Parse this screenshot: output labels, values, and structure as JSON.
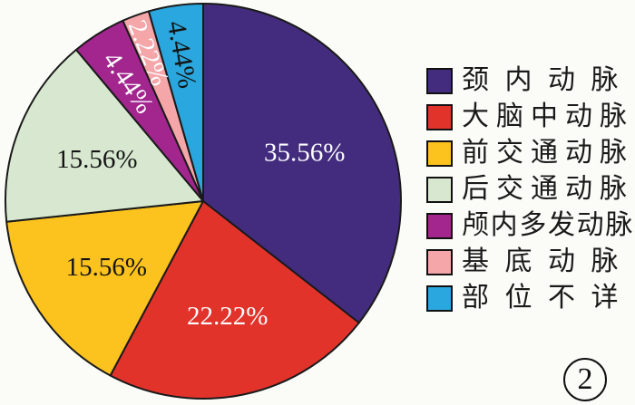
{
  "figure_number": "2",
  "colors": {
    "background": "#fbfbf8",
    "outline": "#1a1a1a"
  },
  "chart_data": {
    "type": "pie",
    "title": "",
    "direction": "clockwise",
    "start_angle_deg": 0,
    "legend_position": "right",
    "slices": [
      {
        "label": "颈内动脉",
        "value": 35.56,
        "pct_label": "35.56%",
        "color": "#432c7e",
        "label_color": "#fdfdff",
        "label_r": 0.57,
        "label_rotation": 0
      },
      {
        "label": "大脑中动脉",
        "value": 22.22,
        "pct_label": "22.22%",
        "color": "#e2332b",
        "label_color": "#fdfdff",
        "label_r": 0.59,
        "label_rotation": 0
      },
      {
        "label": "前交通动脉",
        "value": 15.56,
        "pct_label": "15.56%",
        "color": "#fcc21d",
        "label_color": "#141414",
        "label_r": 0.59,
        "label_rotation": 0
      },
      {
        "label": "后交通动脉",
        "value": 15.56,
        "pct_label": "15.56%",
        "color": "#d8e8d0",
        "label_color": "#141414",
        "label_r": 0.58,
        "label_rotation": 0
      },
      {
        "label": "颅内多发动脉",
        "value": 4.44,
        "pct_label": "4.44%",
        "color": "#a2268e",
        "label_color": "#fdfdff",
        "label_r": 0.71,
        "label_rotation": 56
      },
      {
        "label": "基底动脉",
        "value": 2.22,
        "pct_label": "2.22%",
        "color": "#f4a6a9",
        "label_color": "#fdfdff",
        "label_r": 0.8,
        "label_rotation": 68
      },
      {
        "label": "部位不详",
        "value": 4.44,
        "pct_label": "4.44%",
        "color": "#2aa7de",
        "label_color": "#141414",
        "label_r": 0.75,
        "label_rotation": 80
      }
    ]
  }
}
